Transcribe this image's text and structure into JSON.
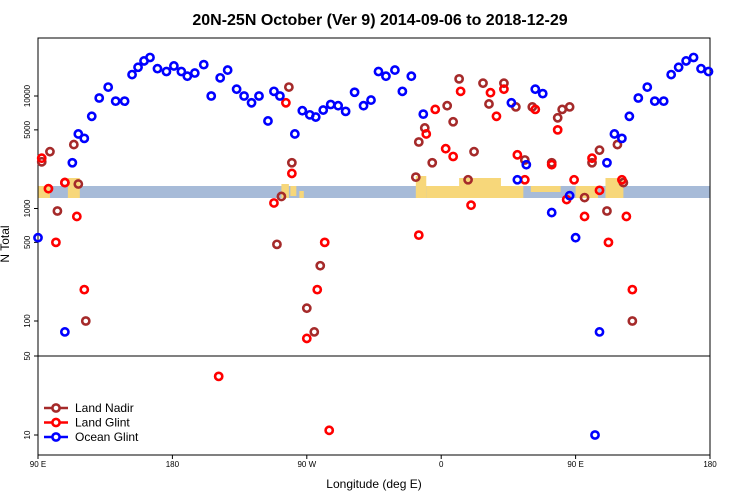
{
  "chart_data": {
    "type": "scatter",
    "title": "20N-25N October (Ver 9)   2014-09-06 to 2018-12-29",
    "xlabel": "Longitude (deg E)",
    "ylabel": "N Total",
    "x_ticks": [
      {
        "value": 90,
        "label": "90 E"
      },
      {
        "value": 180,
        "label": "180"
      },
      {
        "value": 270,
        "label": "90 W"
      },
      {
        "value": 360,
        "label": "0"
      },
      {
        "value": 450,
        "label": "90 E"
      },
      {
        "value": 540,
        "label": "180"
      }
    ],
    "xlim": [
      90,
      540
    ],
    "y_scale": "log (two stacked panels)",
    "y_ticks_upper": [
      "100",
      "500",
      "1000",
      "5000",
      "10000"
    ],
    "y_ticks_lower": [
      "10",
      "50"
    ],
    "ylim_upper": [
      50,
      30000
    ],
    "ylim_lower": [
      7,
      50
    ],
    "grid": false,
    "legend_position": "bottom-left",
    "colors": {
      "land_nadir": "#a52a2a",
      "land_glint": "#ff0000",
      "ocean_glint": "#0000ff",
      "map_ocean": "#a7bbd8",
      "map_land": "#f7d77a"
    },
    "series": [
      {
        "name": "Land Nadir",
        "color": "#a52a2a",
        "points": [
          [
            92.5,
            2600
          ],
          [
            98,
            3200
          ],
          [
            103,
            950
          ],
          [
            108,
            1700
          ],
          [
            114,
            3700
          ],
          [
            117,
            1650
          ],
          [
            122,
            100
          ],
          [
            250,
            480
          ],
          [
            253,
            1280
          ],
          [
            258,
            12000
          ],
          [
            260,
            2550
          ],
          [
            270,
            130
          ],
          [
            275,
            80
          ],
          [
            279,
            310
          ],
          [
            343,
            1900
          ],
          [
            345,
            3900
          ],
          [
            349,
            5200
          ],
          [
            354,
            2550
          ],
          [
            364,
            8200
          ],
          [
            368,
            5900
          ],
          [
            372,
            14200
          ],
          [
            378,
            1800
          ],
          [
            382,
            3200
          ],
          [
            388,
            13000
          ],
          [
            392,
            8500
          ],
          [
            402,
            13000
          ],
          [
            410,
            8000
          ],
          [
            416,
            2700
          ],
          [
            421,
            8000
          ],
          [
            434,
            2550
          ],
          [
            438,
            6400
          ],
          [
            441,
            7600
          ],
          [
            446,
            8000
          ],
          [
            456,
            1250
          ],
          [
            461,
            2550
          ],
          [
            466,
            3300
          ],
          [
            471,
            950
          ],
          [
            478,
            3700
          ],
          [
            482,
            1700
          ],
          [
            488,
            100
          ]
        ]
      },
      {
        "name": "Land Glint",
        "color": "#ff0000",
        "points": [
          [
            92.5,
            2800
          ],
          [
            97,
            1500
          ],
          [
            102,
            500
          ],
          [
            108,
            1700
          ],
          [
            116,
            850
          ],
          [
            121,
            190
          ],
          [
            211,
            33
          ],
          [
            248,
            1120
          ],
          [
            256,
            8700
          ],
          [
            260,
            2050
          ],
          [
            270,
            70
          ],
          [
            277,
            190
          ],
          [
            282,
            500
          ],
          [
            285,
            11
          ],
          [
            345,
            580
          ],
          [
            350,
            4600
          ],
          [
            356,
            7600
          ],
          [
            363,
            3400
          ],
          [
            368,
            2900
          ],
          [
            373,
            11000
          ],
          [
            380,
            1070
          ],
          [
            393,
            10700
          ],
          [
            397,
            6600
          ],
          [
            402,
            11500
          ],
          [
            411,
            3000
          ],
          [
            416,
            1800
          ],
          [
            423,
            7600
          ],
          [
            434,
            2450
          ],
          [
            438,
            5000
          ],
          [
            444,
            1200
          ],
          [
            449,
            1800
          ],
          [
            456,
            850
          ],
          [
            461,
            2800
          ],
          [
            466,
            1450
          ],
          [
            472,
            500
          ],
          [
            481,
            1800
          ],
          [
            484,
            850
          ],
          [
            488,
            190
          ]
        ]
      },
      {
        "name": "Ocean Glint",
        "color": "#0000ff",
        "points": [
          [
            90,
            550
          ],
          [
            108,
            80
          ],
          [
            113,
            2550
          ],
          [
            117,
            4600
          ],
          [
            121,
            4200
          ],
          [
            126,
            6600
          ],
          [
            131,
            9600
          ],
          [
            137,
            12000
          ],
          [
            142,
            9000
          ],
          [
            148,
            9000
          ],
          [
            153,
            15500
          ],
          [
            157,
            18000
          ],
          [
            161,
            20500
          ],
          [
            165,
            22000
          ],
          [
            170,
            17500
          ],
          [
            176,
            16500
          ],
          [
            181,
            18500
          ],
          [
            186,
            16500
          ],
          [
            190,
            15000
          ],
          [
            195,
            16000
          ],
          [
            201,
            19000
          ],
          [
            206,
            10000
          ],
          [
            212,
            14500
          ],
          [
            217,
            17000
          ],
          [
            223,
            11500
          ],
          [
            228,
            10000
          ],
          [
            233,
            8700
          ],
          [
            238,
            10000
          ],
          [
            244,
            6000
          ],
          [
            248,
            11000
          ],
          [
            252,
            10000
          ],
          [
            262,
            4600
          ],
          [
            267,
            7400
          ],
          [
            272,
            6800
          ],
          [
            276,
            6500
          ],
          [
            281,
            7500
          ],
          [
            286,
            8400
          ],
          [
            291,
            8200
          ],
          [
            296,
            7300
          ],
          [
            302,
            10800
          ],
          [
            308,
            8200
          ],
          [
            313,
            9200
          ],
          [
            318,
            16500
          ],
          [
            323,
            15000
          ],
          [
            329,
            17000
          ],
          [
            334,
            11000
          ],
          [
            340,
            15000
          ],
          [
            348,
            6900
          ],
          [
            407,
            8700
          ],
          [
            411,
            1800
          ],
          [
            417,
            2450
          ],
          [
            423,
            11500
          ],
          [
            428,
            10500
          ],
          [
            434,
            920
          ],
          [
            446,
            1300
          ],
          [
            450,
            550
          ],
          [
            463,
            10
          ],
          [
            466,
            80
          ],
          [
            471,
            2550
          ],
          [
            476,
            4600
          ],
          [
            481,
            4200
          ],
          [
            486,
            6600
          ],
          [
            492,
            9600
          ],
          [
            498,
            12000
          ],
          [
            503,
            9000
          ],
          [
            509,
            9000
          ],
          [
            514,
            15500
          ],
          [
            519,
            18000
          ],
          [
            524,
            20500
          ],
          [
            529,
            22000
          ],
          [
            534,
            17500
          ],
          [
            539,
            16500
          ]
        ]
      }
    ]
  }
}
